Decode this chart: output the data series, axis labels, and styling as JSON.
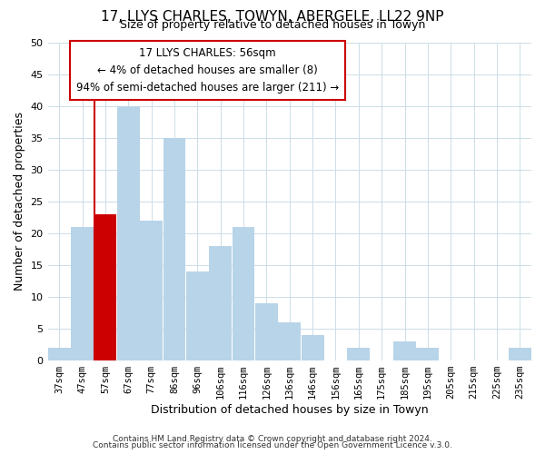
{
  "title": "17, LLYS CHARLES, TOWYN, ABERGELE, LL22 9NP",
  "subtitle": "Size of property relative to detached houses in Towyn",
  "xlabel": "Distribution of detached houses by size in Towyn",
  "ylabel": "Number of detached properties",
  "bar_color": "#b8d4e8",
  "highlight_color": "#cc0000",
  "categories": [
    "37sqm",
    "47sqm",
    "57sqm",
    "67sqm",
    "77sqm",
    "86sqm",
    "96sqm",
    "106sqm",
    "116sqm",
    "126sqm",
    "136sqm",
    "146sqm",
    "156sqm",
    "165sqm",
    "175sqm",
    "185sqm",
    "195sqm",
    "205sqm",
    "215sqm",
    "225sqm",
    "235sqm"
  ],
  "values": [
    2,
    21,
    23,
    40,
    22,
    35,
    14,
    18,
    21,
    9,
    6,
    4,
    0,
    2,
    0,
    3,
    2,
    0,
    0,
    0,
    2
  ],
  "highlight_index": 2,
  "ylim": [
    0,
    50
  ],
  "yticks": [
    0,
    5,
    10,
    15,
    20,
    25,
    30,
    35,
    40,
    45,
    50
  ],
  "annotation_title": "17 LLYS CHARLES: 56sqm",
  "annotation_line1": "← 4% of detached houses are smaller (8)",
  "annotation_line2": "94% of semi-detached houses are larger (211) →",
  "footer1": "Contains HM Land Registry data © Crown copyright and database right 2024.",
  "footer2": "Contains public sector information licensed under the Open Government Licence v.3.0."
}
